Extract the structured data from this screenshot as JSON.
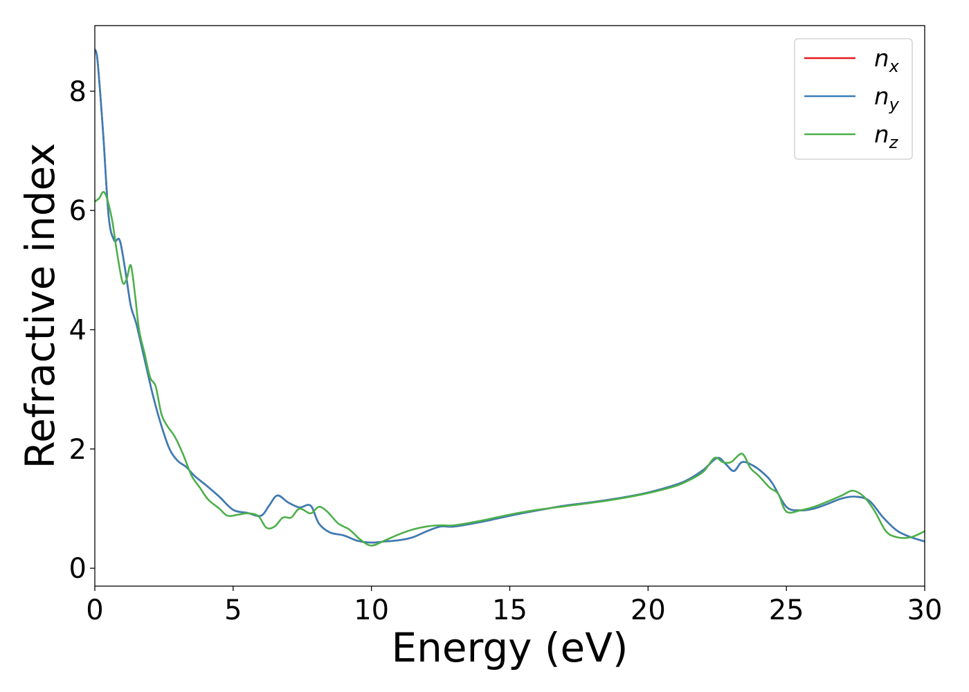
{
  "chart_data": {
    "type": "line",
    "title": "",
    "xlabel": "Energy (eV)",
    "ylabel": "Refractive index",
    "xlim": [
      0,
      30
    ],
    "ylim": [
      -0.3,
      9.1
    ],
    "xticks": [
      0,
      5,
      10,
      15,
      20,
      25,
      30
    ],
    "yticks": [
      0,
      2,
      4,
      6,
      8
    ],
    "grid": false,
    "legend_position": "top-right",
    "series": [
      {
        "name": "n_x",
        "legend_base": "n",
        "legend_sub": "x",
        "color": "#e41a1c",
        "x": [
          0,
          0.1,
          0.3,
          0.5,
          0.7,
          0.9,
          1.1,
          1.3,
          1.5,
          1.8,
          2.1,
          2.4,
          2.7,
          3.0,
          3.3,
          3.6,
          4.0,
          4.5,
          5.0,
          5.5,
          6.0,
          6.3,
          6.6,
          7.0,
          7.4,
          7.8,
          8.1,
          8.5,
          9.0,
          9.5,
          10.0,
          10.5,
          11.0,
          11.5,
          12.0,
          12.5,
          13.0,
          14.0,
          15.0,
          16.0,
          17.0,
          18.0,
          19.0,
          20.0,
          21.0,
          21.5,
          22.0,
          22.5,
          22.8,
          23.1,
          23.4,
          23.8,
          24.2,
          24.5,
          25.0,
          25.5,
          26.0,
          26.5,
          27.0,
          27.5,
          28.0,
          28.5,
          29.0,
          29.5,
          30.0
        ],
        "y": [
          8.7,
          8.5,
          7.3,
          5.9,
          5.5,
          5.5,
          5.0,
          4.4,
          4.1,
          3.5,
          2.9,
          2.4,
          2.0,
          1.8,
          1.7,
          1.55,
          1.4,
          1.2,
          0.98,
          0.93,
          0.88,
          1.05,
          1.22,
          1.1,
          1.02,
          1.05,
          0.75,
          0.6,
          0.55,
          0.46,
          0.43,
          0.45,
          0.47,
          0.52,
          0.62,
          0.7,
          0.7,
          0.78,
          0.88,
          0.97,
          1.05,
          1.11,
          1.18,
          1.27,
          1.4,
          1.5,
          1.65,
          1.85,
          1.75,
          1.63,
          1.78,
          1.72,
          1.58,
          1.42,
          1.03,
          0.97,
          1.0,
          1.08,
          1.17,
          1.2,
          1.13,
          0.85,
          0.63,
          0.52,
          0.45
        ]
      },
      {
        "name": "n_y",
        "legend_base": "n",
        "legend_sub": "y",
        "color": "#377eb8",
        "x": [
          0,
          0.1,
          0.3,
          0.5,
          0.7,
          0.9,
          1.1,
          1.3,
          1.5,
          1.8,
          2.1,
          2.4,
          2.7,
          3.0,
          3.3,
          3.6,
          4.0,
          4.5,
          5.0,
          5.5,
          6.0,
          6.3,
          6.6,
          7.0,
          7.4,
          7.8,
          8.1,
          8.5,
          9.0,
          9.5,
          10.0,
          10.5,
          11.0,
          11.5,
          12.0,
          12.5,
          13.0,
          14.0,
          15.0,
          16.0,
          17.0,
          18.0,
          19.0,
          20.0,
          21.0,
          21.5,
          22.0,
          22.5,
          22.8,
          23.1,
          23.4,
          23.8,
          24.2,
          24.5,
          25.0,
          25.5,
          26.0,
          26.5,
          27.0,
          27.5,
          28.0,
          28.5,
          29.0,
          29.5,
          30.0
        ],
        "y": [
          8.7,
          8.5,
          7.3,
          5.9,
          5.5,
          5.5,
          5.0,
          4.4,
          4.1,
          3.5,
          2.9,
          2.4,
          2.0,
          1.8,
          1.7,
          1.55,
          1.4,
          1.2,
          0.98,
          0.93,
          0.88,
          1.05,
          1.22,
          1.1,
          1.02,
          1.05,
          0.75,
          0.6,
          0.55,
          0.46,
          0.43,
          0.45,
          0.47,
          0.52,
          0.62,
          0.7,
          0.7,
          0.78,
          0.88,
          0.97,
          1.05,
          1.11,
          1.18,
          1.27,
          1.4,
          1.5,
          1.65,
          1.85,
          1.75,
          1.63,
          1.78,
          1.72,
          1.58,
          1.42,
          1.03,
          0.97,
          1.0,
          1.08,
          1.17,
          1.2,
          1.13,
          0.85,
          0.63,
          0.52,
          0.45
        ]
      },
      {
        "name": "n_z",
        "legend_base": "n",
        "legend_sub": "z",
        "color": "#4daf4a",
        "x": [
          0,
          0.15,
          0.35,
          0.6,
          0.8,
          1.0,
          1.15,
          1.3,
          1.45,
          1.6,
          1.8,
          2.0,
          2.2,
          2.4,
          2.6,
          2.9,
          3.2,
          3.5,
          3.8,
          4.1,
          4.5,
          4.8,
          5.2,
          5.5,
          5.9,
          6.2,
          6.5,
          6.8,
          7.1,
          7.4,
          7.8,
          8.1,
          8.4,
          8.8,
          9.2,
          9.6,
          10.0,
          10.5,
          11.0,
          11.5,
          12.0,
          12.5,
          13.0,
          14.0,
          15.0,
          16.0,
          17.0,
          18.0,
          19.0,
          20.0,
          21.0,
          21.5,
          22.0,
          22.4,
          22.7,
          23.0,
          23.4,
          23.7,
          24.0,
          24.4,
          24.7,
          25.0,
          25.5,
          26.0,
          26.5,
          27.0,
          27.4,
          27.8,
          28.2,
          28.6,
          29.0,
          29.5,
          30.0
        ],
        "y": [
          6.15,
          6.2,
          6.3,
          5.9,
          5.3,
          4.8,
          4.85,
          5.08,
          4.6,
          4.0,
          3.6,
          3.2,
          3.05,
          2.6,
          2.4,
          2.2,
          1.9,
          1.55,
          1.35,
          1.15,
          1.0,
          0.88,
          0.9,
          0.92,
          0.88,
          0.68,
          0.7,
          0.85,
          0.85,
          1.0,
          0.92,
          1.03,
          0.95,
          0.75,
          0.65,
          0.48,
          0.38,
          0.47,
          0.57,
          0.65,
          0.7,
          0.72,
          0.72,
          0.8,
          0.9,
          0.98,
          1.04,
          1.1,
          1.17,
          1.26,
          1.38,
          1.48,
          1.62,
          1.85,
          1.78,
          1.78,
          1.92,
          1.68,
          1.55,
          1.35,
          1.25,
          0.95,
          0.97,
          1.03,
          1.12,
          1.22,
          1.3,
          1.2,
          0.95,
          0.62,
          0.52,
          0.52,
          0.62
        ]
      }
    ]
  }
}
